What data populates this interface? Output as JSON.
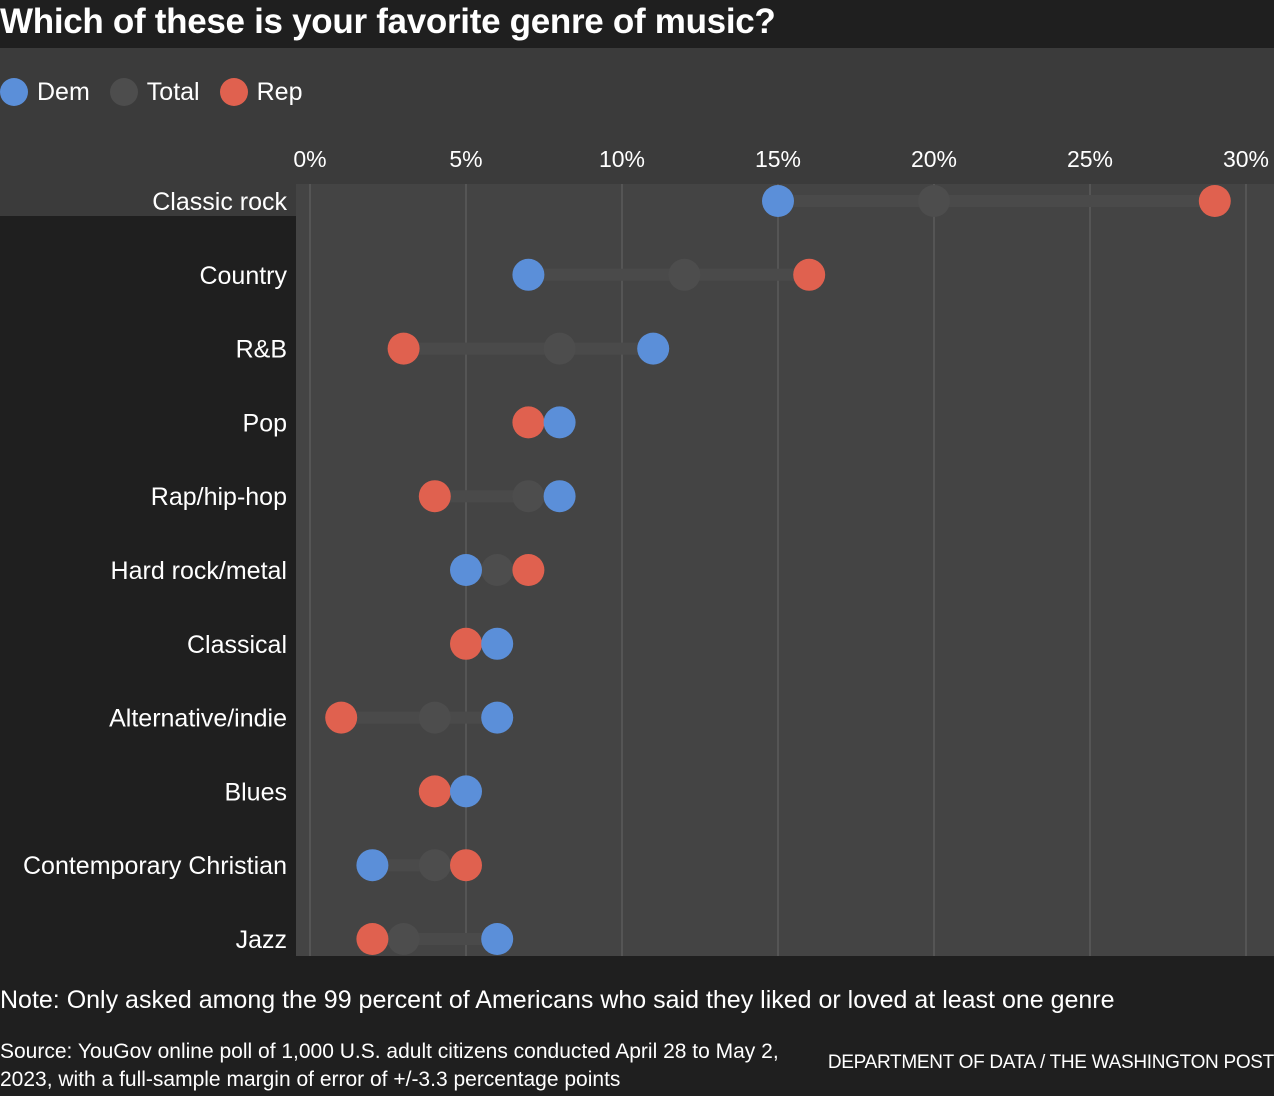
{
  "title": "Which of these is your favorite genre of music?",
  "legend": [
    {
      "label": "Dem",
      "color": "#5b8fd9"
    },
    {
      "label": "Total",
      "color": "#4d4d4d"
    },
    {
      "label": "Rep",
      "color": "#e0614f"
    }
  ],
  "note": "Note: Only asked among the 99 percent of Americans who said they liked or loved at least one genre",
  "source": "Source: YouGov online poll of 1,000 U.S. adult citizens conducted April 28 to May 2, 2023, with a full-sample margin of error of +/-3.3 percentage points",
  "credit": "DEPARTMENT OF DATA / THE WASHINGTON POST",
  "chart_data": {
    "type": "dot",
    "xlim": [
      0,
      30
    ],
    "xticks": [
      0,
      5,
      10,
      15,
      20,
      25,
      30
    ],
    "xtick_labels": [
      "0%",
      "5%",
      "10%",
      "15%",
      "20%",
      "25%",
      "30%"
    ],
    "grid": true,
    "categories": [
      "Classic rock",
      "Country",
      "R&B",
      "Pop",
      "Rap/hip-hop",
      "Hard rock/metal",
      "Classical",
      "Alternative/indie",
      "Blues",
      "Contemporary Christian",
      "Jazz"
    ],
    "series": [
      {
        "name": "Total",
        "color": "#4d4d4d",
        "values": [
          20,
          12,
          8,
          7,
          7,
          6,
          5,
          4,
          4,
          4,
          3
        ]
      },
      {
        "name": "Rep",
        "color": "#e0614f",
        "values": [
          29,
          16,
          3,
          7,
          4,
          7,
          5,
          1,
          4,
          5,
          2
        ]
      },
      {
        "name": "Dem",
        "color": "#5b8fd9",
        "values": [
          15,
          7,
          11,
          8,
          8,
          5,
          6,
          6,
          5,
          2,
          6
        ]
      }
    ]
  }
}
